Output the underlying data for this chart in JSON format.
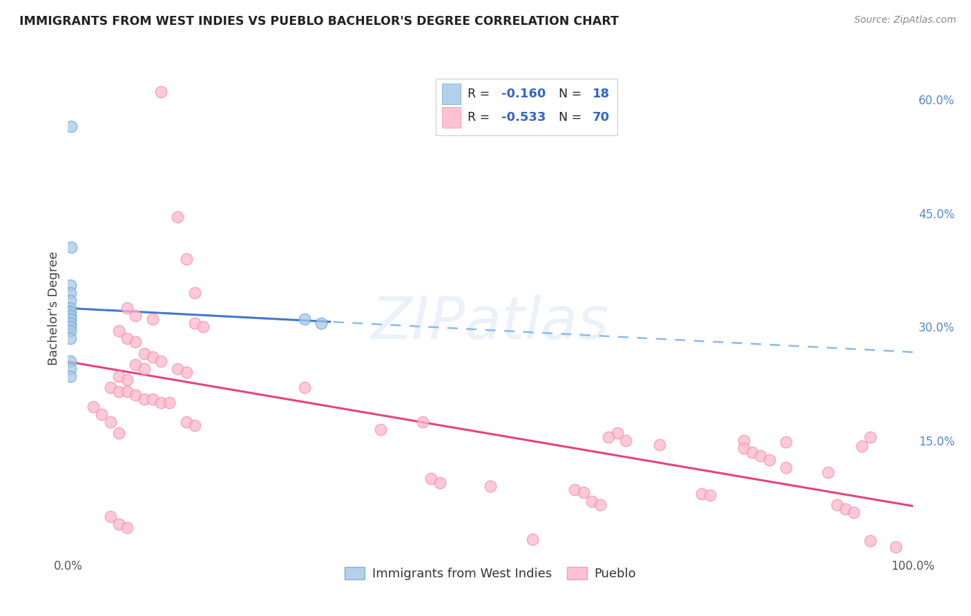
{
  "title": "IMMIGRANTS FROM WEST INDIES VS PUEBLO BACHELOR'S DEGREE CORRELATION CHART",
  "source": "Source: ZipAtlas.com",
  "ylabel": "Bachelor's Degree",
  "xlim": [
    0,
    1.0
  ],
  "ylim": [
    0,
    0.65
  ],
  "xtick_positions": [
    0.0,
    0.2,
    0.4,
    0.6,
    0.8,
    1.0
  ],
  "xticklabels": [
    "0.0%",
    "",
    "",
    "",
    "",
    "100.0%"
  ],
  "ytick_positions": [
    0.0,
    0.15,
    0.3,
    0.45,
    0.6
  ],
  "yticklabels_right": [
    "",
    "15.0%",
    "30.0%",
    "45.0%",
    "60.0%"
  ],
  "blue_color": "#a8c8e8",
  "blue_edge_color": "#6aaad4",
  "pink_color": "#ffb8cc",
  "pink_edge_color": "#f090a8",
  "blue_line_color": "#4477cc",
  "pink_line_color": "#e84080",
  "dashed_line_color": "#88bbee",
  "grid_color": "#dde8f5",
  "watermark": "ZIPatlas",
  "watermark_zip_color": "#c0d8f0",
  "watermark_atlas_color": "#a0b8d8",
  "right_tick_color": "#5588cc",
  "blue_solid_xrange": [
    0.0,
    0.31
  ],
  "blue_full_xrange": [
    0.0,
    1.0
  ],
  "pink_xrange": [
    0.0,
    1.0
  ],
  "blue_points": [
    [
      0.004,
      0.565
    ],
    [
      0.004,
      0.405
    ],
    [
      0.003,
      0.355
    ],
    [
      0.003,
      0.345
    ],
    [
      0.003,
      0.335
    ],
    [
      0.003,
      0.325
    ],
    [
      0.003,
      0.32
    ],
    [
      0.003,
      0.315
    ],
    [
      0.003,
      0.31
    ],
    [
      0.003,
      0.305
    ],
    [
      0.003,
      0.3
    ],
    [
      0.003,
      0.295
    ],
    [
      0.003,
      0.285
    ],
    [
      0.003,
      0.255
    ],
    [
      0.003,
      0.245
    ],
    [
      0.003,
      0.235
    ],
    [
      0.28,
      0.31
    ],
    [
      0.3,
      0.305
    ]
  ],
  "pink_points": [
    [
      0.11,
      0.61
    ],
    [
      0.13,
      0.445
    ],
    [
      0.14,
      0.39
    ],
    [
      0.15,
      0.345
    ],
    [
      0.07,
      0.325
    ],
    [
      0.08,
      0.315
    ],
    [
      0.1,
      0.31
    ],
    [
      0.15,
      0.305
    ],
    [
      0.16,
      0.3
    ],
    [
      0.06,
      0.295
    ],
    [
      0.07,
      0.285
    ],
    [
      0.08,
      0.28
    ],
    [
      0.09,
      0.265
    ],
    [
      0.1,
      0.26
    ],
    [
      0.11,
      0.255
    ],
    [
      0.08,
      0.25
    ],
    [
      0.09,
      0.245
    ],
    [
      0.13,
      0.245
    ],
    [
      0.14,
      0.24
    ],
    [
      0.06,
      0.235
    ],
    [
      0.07,
      0.23
    ],
    [
      0.05,
      0.22
    ],
    [
      0.28,
      0.22
    ],
    [
      0.06,
      0.215
    ],
    [
      0.07,
      0.215
    ],
    [
      0.08,
      0.21
    ],
    [
      0.09,
      0.205
    ],
    [
      0.1,
      0.205
    ],
    [
      0.11,
      0.2
    ],
    [
      0.12,
      0.2
    ],
    [
      0.03,
      0.195
    ],
    [
      0.04,
      0.185
    ],
    [
      0.05,
      0.175
    ],
    [
      0.14,
      0.175
    ],
    [
      0.15,
      0.17
    ],
    [
      0.42,
      0.175
    ],
    [
      0.37,
      0.165
    ],
    [
      0.06,
      0.16
    ],
    [
      0.65,
      0.16
    ],
    [
      0.64,
      0.155
    ],
    [
      0.95,
      0.155
    ],
    [
      0.66,
      0.15
    ],
    [
      0.8,
      0.15
    ],
    [
      0.85,
      0.148
    ],
    [
      0.7,
      0.145
    ],
    [
      0.94,
      0.143
    ],
    [
      0.8,
      0.14
    ],
    [
      0.81,
      0.135
    ],
    [
      0.82,
      0.13
    ],
    [
      0.83,
      0.125
    ],
    [
      0.85,
      0.115
    ],
    [
      0.9,
      0.108
    ],
    [
      0.43,
      0.1
    ],
    [
      0.44,
      0.095
    ],
    [
      0.5,
      0.09
    ],
    [
      0.6,
      0.085
    ],
    [
      0.61,
      0.082
    ],
    [
      0.75,
      0.08
    ],
    [
      0.76,
      0.078
    ],
    [
      0.62,
      0.07
    ],
    [
      0.63,
      0.065
    ],
    [
      0.91,
      0.065
    ],
    [
      0.92,
      0.06
    ],
    [
      0.93,
      0.055
    ],
    [
      0.05,
      0.05
    ],
    [
      0.06,
      0.04
    ],
    [
      0.07,
      0.035
    ],
    [
      0.55,
      0.02
    ],
    [
      0.95,
      0.018
    ],
    [
      0.98,
      0.01
    ]
  ]
}
